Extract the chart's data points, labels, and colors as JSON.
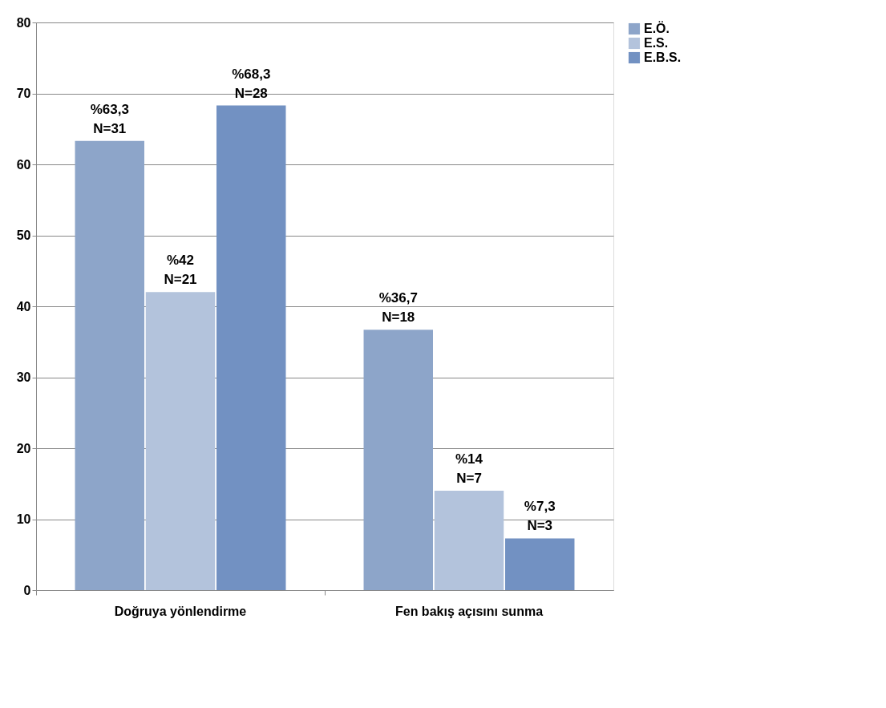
{
  "chart_data": {
    "type": "bar",
    "categories": [
      "Doğruya yönlendirme",
      "Fen bakış açısını sunma"
    ],
    "series": [
      {
        "name": "E.Ö.",
        "color": "#8da5c9",
        "values": [
          63.3,
          36.7
        ],
        "value_labels": [
          "%63,3\nN=31",
          "%36,7\nN=18"
        ]
      },
      {
        "name": "E.S.",
        "color": "#b3c3dc",
        "values": [
          42,
          14
        ],
        "value_labels": [
          "%42\nN=21",
          "%14\nN=7"
        ]
      },
      {
        "name": "E.B.S.",
        "color": "#7291c2",
        "values": [
          68.3,
          7.3
        ],
        "value_labels": [
          "%68,3\nN=28",
          "%7,3\nN=3"
        ]
      }
    ],
    "ylim": [
      0,
      80
    ],
    "yticks": [
      0,
      10,
      20,
      30,
      40,
      50,
      60,
      70,
      80
    ],
    "grid": "y",
    "legend": "right"
  }
}
